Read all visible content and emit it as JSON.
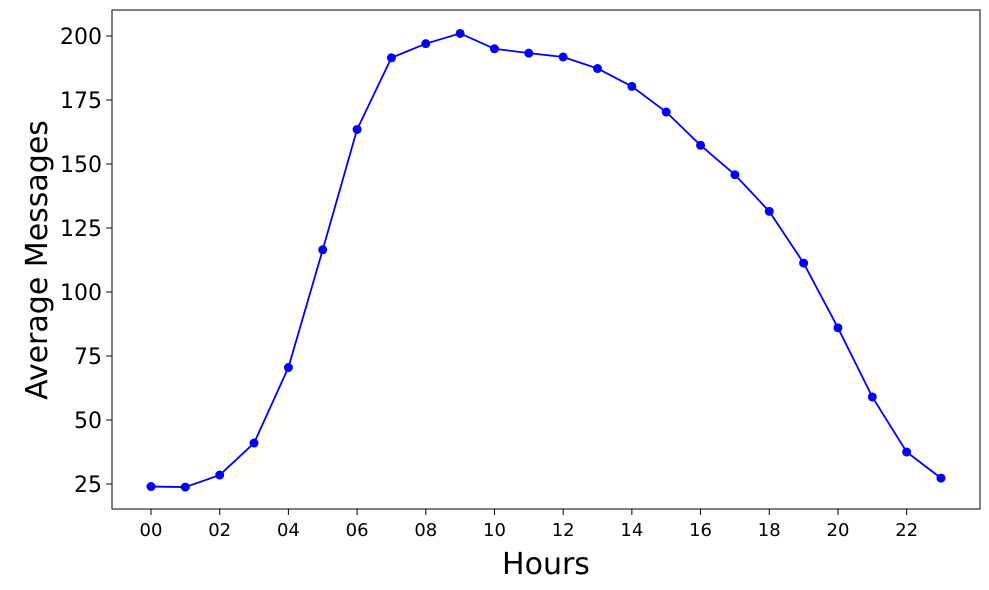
{
  "chart_data": {
    "type": "line",
    "title": "",
    "xlabel": "Hours",
    "ylabel": "Average Messages",
    "x": [
      "00",
      "01",
      "02",
      "03",
      "04",
      "05",
      "06",
      "07",
      "08",
      "09",
      "10",
      "11",
      "12",
      "13",
      "14",
      "15",
      "16",
      "17",
      "18",
      "19",
      "20",
      "21",
      "22",
      "23"
    ],
    "x_tick_labels": [
      "00",
      "02",
      "04",
      "06",
      "08",
      "10",
      "12",
      "14",
      "16",
      "18",
      "20",
      "22"
    ],
    "y_ticks": [
      25,
      50,
      75,
      100,
      125,
      150,
      175,
      200
    ],
    "ylim": [
      15,
      210
    ],
    "grid": false,
    "series": [
      {
        "color": "#0000ff",
        "marker": "circle",
        "values": [
          24,
          23.8,
          28.5,
          41,
          70.5,
          116.5,
          163.5,
          191.5,
          197,
          201,
          195,
          193.3,
          191.8,
          187.3,
          180.3,
          170.3,
          157.3,
          145.8,
          131.5,
          111.3,
          86,
          59,
          37.5,
          27.3
        ]
      }
    ]
  }
}
